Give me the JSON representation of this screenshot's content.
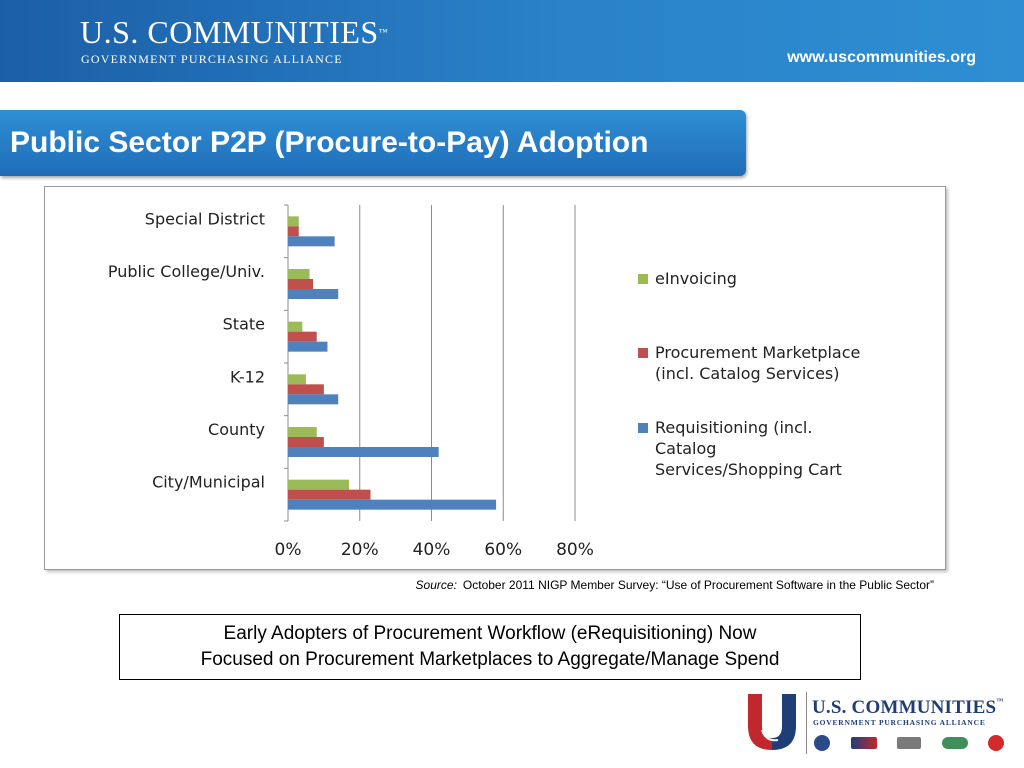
{
  "header": {
    "brand_name": "U.S. COMMUNITIES",
    "brand_tm": "™",
    "brand_sub": "GOVERNMENT PURCHASING ALLIANCE",
    "url": "www.uscommunities.org"
  },
  "title": "Public Sector P2P (Procure-to-Pay) Adoption",
  "chart_data": {
    "type": "bar",
    "orientation": "horizontal",
    "categories": [
      "Special District",
      "Public College/Univ.",
      "State",
      "K-12",
      "County",
      "City/Municipal"
    ],
    "series": [
      {
        "name": "eInvoicing",
        "values": [
          3,
          6,
          4,
          5,
          8,
          17
        ]
      },
      {
        "name": "Procurement Marketplace (incl. Catalog Services)",
        "values": [
          3,
          7,
          8,
          10,
          10,
          23
        ]
      },
      {
        "name": "Requisitioning (incl. Catalog Services/Shopping Cart",
        "values": [
          13,
          14,
          11,
          14,
          42,
          58
        ]
      }
    ],
    "legend": [
      {
        "lines": [
          "eInvoicing"
        ]
      },
      {
        "lines": [
          "Procurement Marketplace",
          "(incl. Catalog Services)"
        ]
      },
      {
        "lines": [
          "Requisitioning (incl.",
          "Catalog",
          "Services/Shopping Cart"
        ]
      }
    ],
    "x_ticks": [
      "0%",
      "20%",
      "40%",
      "60%",
      "80%"
    ],
    "xlim": [
      0,
      80
    ],
    "grid": true,
    "legend_position": "right",
    "colors": [
      "#9bbb59",
      "#c0504d",
      "#4f81bd"
    ]
  },
  "source": {
    "label": "Source:",
    "text": "October 2011 NIGP Member Survey:  “Use of Procurement Software in the Public Sector”"
  },
  "note": {
    "line1": "Early Adopters of Procurement Workflow (eRequisitioning) Now",
    "line2": "Focused on Procurement Marketplaces to Aggregate/Manage Spend"
  },
  "footer": {
    "brand_name": "U.S. COMMUNITIES",
    "brand_tm": "™",
    "brand_sub": "GOVERNMENT PURCHASING ALLIANCE",
    "colors": {
      "u_red": "#c0282d",
      "u_blue": "#1f3e78"
    }
  }
}
